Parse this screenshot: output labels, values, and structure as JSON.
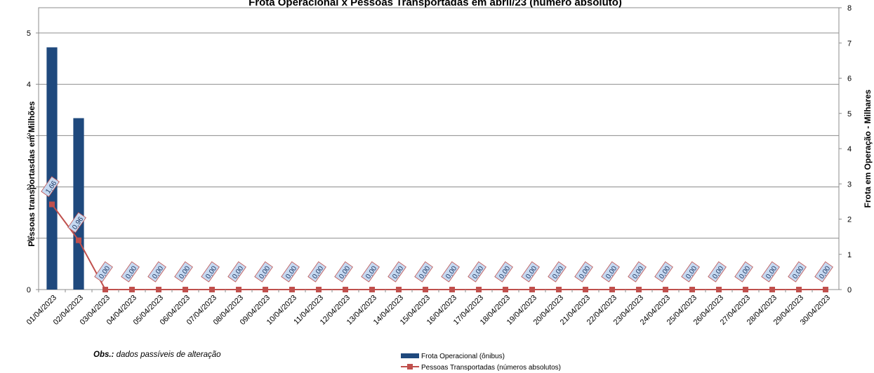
{
  "chart_data": {
    "type": "bar+line",
    "title": "Frota Operacional x Pessoas Transportadas em abril/23 (número absoluto)",
    "ylabel_left": "Pessoas transportasdas em Milhões",
    "ylabel_right": "Frota  em Operação - Milhares",
    "left_axis": {
      "min": 0,
      "max": 5,
      "ticks": [
        "0",
        "1",
        "2",
        "3",
        "4",
        "5"
      ]
    },
    "right_axis": {
      "min": 0,
      "max": 8,
      "ticks": [
        "0",
        "1",
        "2",
        "3",
        "4",
        "5",
        "6",
        "7",
        "8"
      ]
    },
    "categories": [
      "01/04/2023",
      "02/04/2023",
      "03/04/2023",
      "04/04/2023",
      "05/04/2023",
      "06/04/2023",
      "07/04/2023",
      "08/04/2023",
      "09/04/2023",
      "10/04/2023",
      "11/04/2023",
      "12/04/2023",
      "13/04/2023",
      "14/04/2023",
      "15/04/2023",
      "16/04/2023",
      "17/04/2023",
      "18/04/2023",
      "19/04/2023",
      "20/04/2023",
      "21/04/2023",
      "22/04/2023",
      "23/04/2023",
      "24/04/2023",
      "25/04/2023",
      "26/04/2023",
      "27/04/2023",
      "28/04/2023",
      "29/04/2023",
      "30/04/2023"
    ],
    "series": [
      {
        "name": "Frota Operacional (ônibus)",
        "type": "bar",
        "axis": "left",
        "color": "#1f497d",
        "values": [
          4.72,
          3.34,
          0,
          0,
          0,
          0,
          0,
          0,
          0,
          0,
          0,
          0,
          0,
          0,
          0,
          0,
          0,
          0,
          0,
          0,
          0,
          0,
          0,
          0,
          0,
          0,
          0,
          0,
          0,
          0
        ]
      },
      {
        "name": "Pessoas Transportadas (números absolutos)",
        "type": "line",
        "axis": "left",
        "color": "#c0504d",
        "values": [
          1.66,
          0.96,
          0,
          0,
          0,
          0,
          0,
          0,
          0,
          0,
          0,
          0,
          0,
          0,
          0,
          0,
          0,
          0,
          0,
          0,
          0,
          0,
          0,
          0,
          0,
          0,
          0,
          0,
          0,
          0
        ],
        "data_labels": [
          "1,66",
          "0,96",
          "0,00",
          "0,00",
          "0,00",
          "0,00",
          "0,00",
          "0,00",
          "0,00",
          "0,00",
          "0,00",
          "0,00",
          "0,00",
          "0,00",
          "0,00",
          "0,00",
          "0,00",
          "0,00",
          "0,00",
          "0,00",
          "0,00",
          "0,00",
          "0,00",
          "0,00",
          "0,00",
          "0,00",
          "0,00",
          "0,00",
          "0,00",
          "0,00"
        ]
      }
    ],
    "grid": true,
    "legend": "bottom-center"
  },
  "note": {
    "bold": "Obs.:",
    "text": " dados passíveis de alteração"
  }
}
